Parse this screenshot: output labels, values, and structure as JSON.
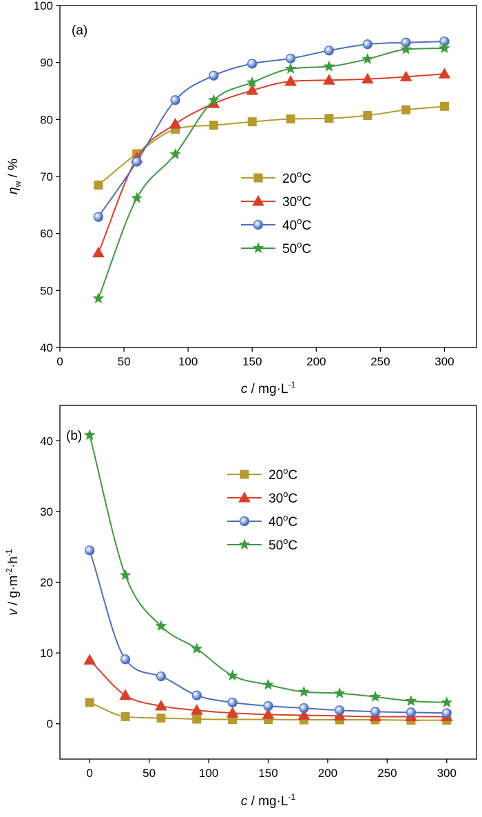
{
  "colors": {
    "20C": "#B59A2E",
    "30C": "#D8402A",
    "40C": "#4A6FC2",
    "50C": "#3E9A3E"
  },
  "chart_data": [
    {
      "type": "line",
      "panel_label": "(a)",
      "xlabel_italic": "c",
      "xlabel_rest": " / mg·L",
      "xlabel_sup": "-1",
      "ylabel_italic": "η",
      "ylabel_sub": "w",
      "ylabel_rest": " / %",
      "xlim": [
        0,
        325
      ],
      "ylim": [
        40,
        100
      ],
      "xticks": [
        0,
        50,
        100,
        150,
        200,
        250,
        300
      ],
      "yticks": [
        40,
        50,
        60,
        70,
        80,
        90,
        100
      ],
      "legend": {
        "placement": "center"
      },
      "series": [
        {
          "name": "20",
          "unit": "oC",
          "marker": "square",
          "color": "#B59A2E",
          "x": [
            30,
            60,
            90,
            120,
            150,
            180,
            210,
            240,
            270,
            300
          ],
          "values": [
            68.5,
            74.0,
            78.3,
            79.0,
            79.6,
            80.1,
            80.2,
            80.7,
            81.7,
            82.3
          ]
        },
        {
          "name": "30",
          "unit": "oC",
          "marker": "triangle",
          "color": "#D8402A",
          "x": [
            30,
            60,
            90,
            120,
            150,
            180,
            210,
            240,
            270,
            300
          ],
          "values": [
            56.6,
            73.2,
            79.2,
            82.8,
            85.1,
            86.7,
            86.9,
            87.1,
            87.5,
            88.0
          ]
        },
        {
          "name": "40",
          "unit": "oC",
          "marker": "circle",
          "color": "#4A6FC2",
          "x": [
            30,
            60,
            90,
            120,
            150,
            180,
            210,
            240,
            270,
            300
          ],
          "values": [
            62.9,
            72.6,
            83.4,
            87.7,
            89.8,
            90.7,
            92.1,
            93.2,
            93.5,
            93.7
          ]
        },
        {
          "name": "50",
          "unit": "oC",
          "marker": "star",
          "color": "#3E9A3E",
          "x": [
            30,
            60,
            90,
            120,
            150,
            180,
            210,
            240,
            270,
            300
          ],
          "values": [
            48.6,
            66.2,
            73.9,
            83.4,
            86.5,
            88.9,
            89.3,
            90.6,
            92.3,
            92.5
          ]
        }
      ]
    },
    {
      "type": "line",
      "panel_label": "(b)",
      "xlabel_italic": "c",
      "xlabel_rest": " / mg·L",
      "xlabel_sup": "-1",
      "ylabel_italic": "v",
      "ylabel_rest": " / g·m",
      "ylabel_sup1": "-2",
      "ylabel_mid": "·h",
      "ylabel_sup2": "-1",
      "xlim": [
        -25,
        325
      ],
      "ylim": [
        -5,
        45
      ],
      "xticks": [
        0,
        50,
        100,
        150,
        200,
        250,
        300
      ],
      "yticks": [
        0,
        10,
        20,
        30,
        40
      ],
      "legend": {
        "placement": "top-center"
      },
      "series": [
        {
          "name": "20",
          "unit": "oC",
          "marker": "square",
          "color": "#B59A2E",
          "x": [
            0,
            30,
            60,
            90,
            120,
            150,
            180,
            210,
            240,
            270,
            300
          ],
          "values": [
            3.0,
            1.0,
            0.8,
            0.65,
            0.6,
            0.6,
            0.55,
            0.55,
            0.55,
            0.5,
            0.5
          ]
        },
        {
          "name": "30",
          "unit": "oC",
          "marker": "triangle",
          "color": "#D8402A",
          "x": [
            0,
            30,
            60,
            90,
            120,
            150,
            180,
            210,
            240,
            270,
            300
          ],
          "values": [
            9.0,
            4.0,
            2.5,
            1.9,
            1.5,
            1.3,
            1.2,
            1.1,
            1.0,
            1.0,
            1.0
          ]
        },
        {
          "name": "40",
          "unit": "oC",
          "marker": "circle",
          "color": "#4A6FC2",
          "x": [
            0,
            30,
            60,
            90,
            120,
            150,
            180,
            210,
            240,
            270,
            300
          ],
          "values": [
            24.5,
            9.1,
            6.7,
            4.0,
            3.0,
            2.5,
            2.2,
            1.9,
            1.7,
            1.6,
            1.5
          ]
        },
        {
          "name": "50",
          "unit": "oC",
          "marker": "star",
          "color": "#3E9A3E",
          "x": [
            0,
            30,
            60,
            90,
            120,
            150,
            180,
            210,
            240,
            270,
            300
          ],
          "values": [
            40.8,
            21.0,
            13.8,
            10.6,
            6.8,
            5.5,
            4.5,
            4.3,
            3.8,
            3.2,
            3.0
          ]
        }
      ]
    }
  ]
}
